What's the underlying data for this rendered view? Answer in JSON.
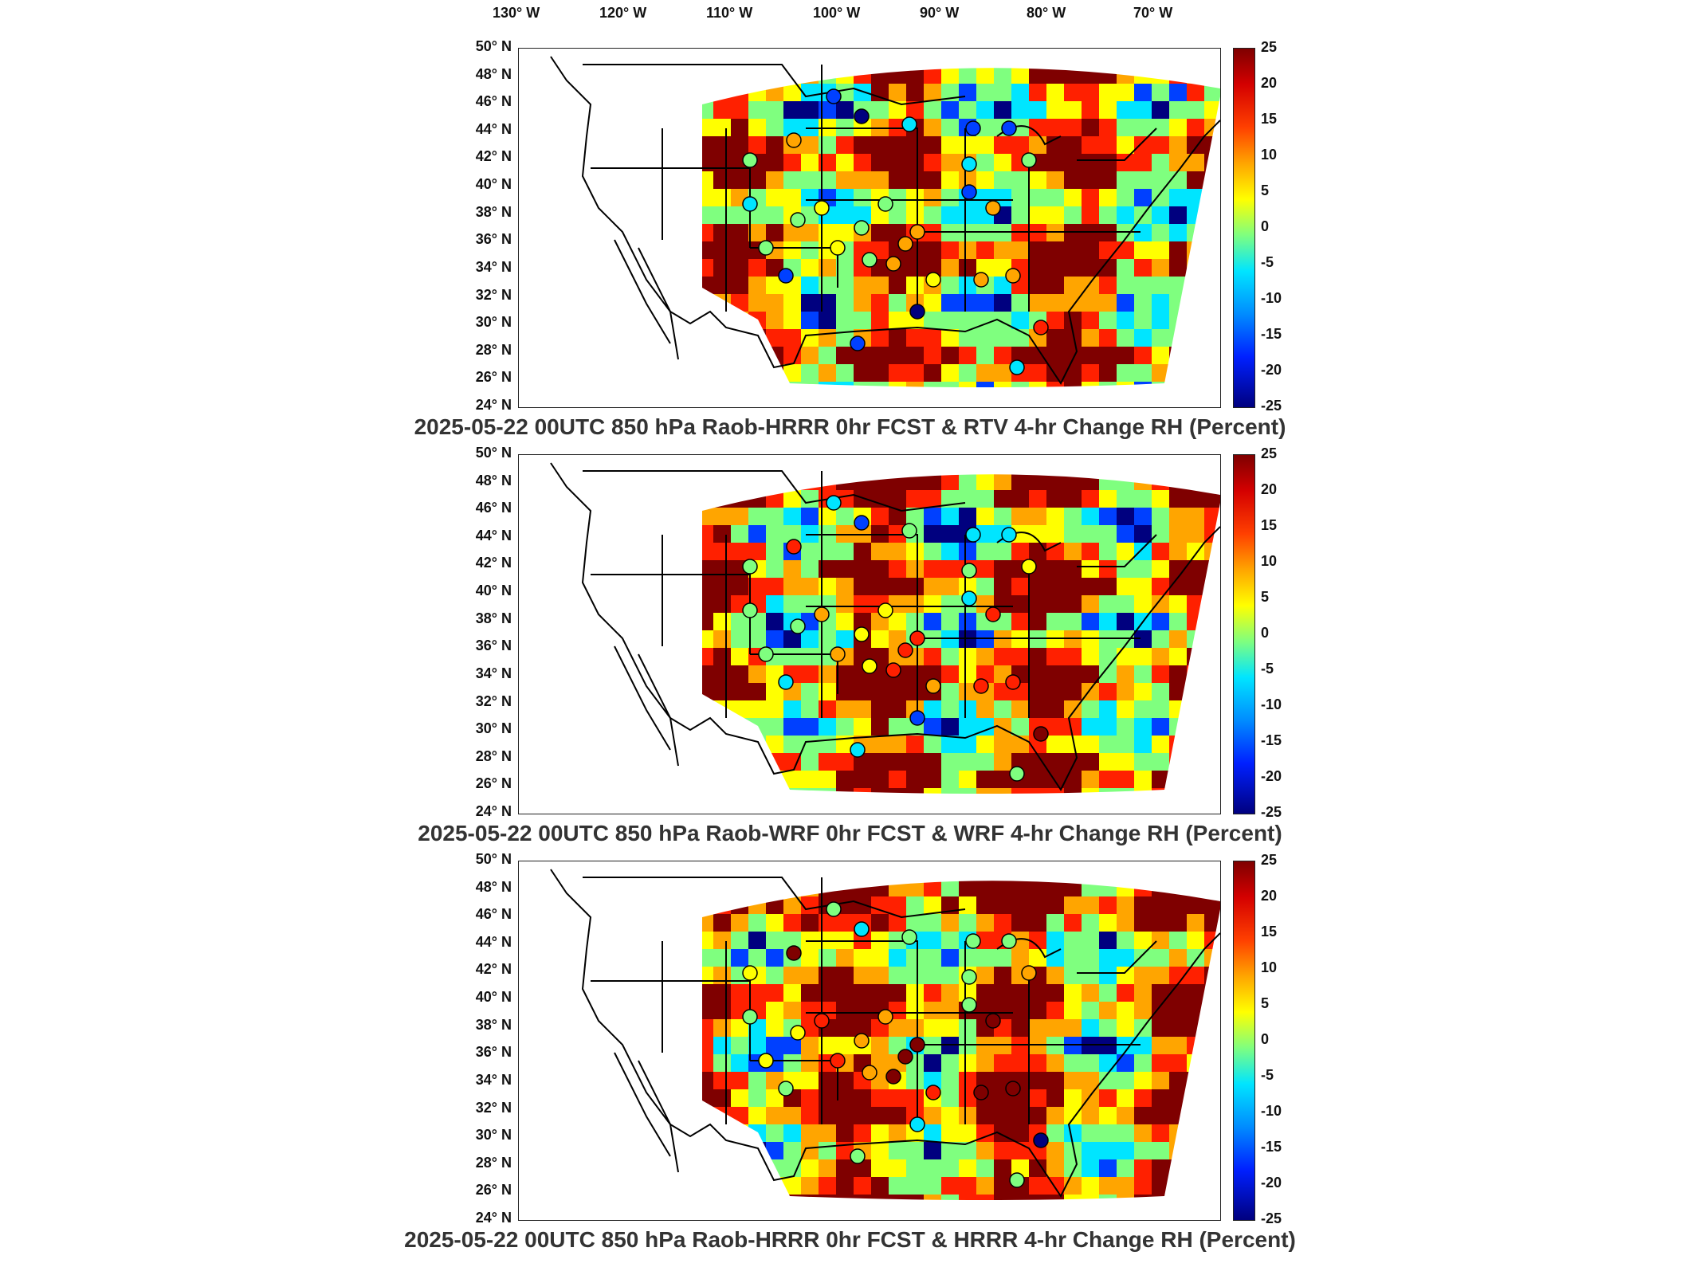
{
  "lon_labels": [
    "130° W",
    "120° W",
    "110° W",
    "100° W",
    "90° W",
    "80° W",
    "70° W"
  ],
  "lat_labels": [
    "50° N",
    "48° N",
    "46° N",
    "44° N",
    "42° N",
    "40° N",
    "38° N",
    "36° N",
    "34° N",
    "32° N",
    "30° N",
    "28° N",
    "26° N",
    "24° N"
  ],
  "colorbar_ticks": [
    "25",
    "20",
    "15",
    "10",
    "5",
    "0",
    "-5",
    "-10",
    "-15",
    "-20",
    "-25"
  ],
  "panels": [
    {
      "title": "2025-05-22 00UTC 850 hPa Raob-HRRR 0hr FCST & RTV 4-hr Change RH (Percent)"
    },
    {
      "title": "2025-05-22 00UTC 850 hPa Raob-WRF 0hr FCST & WRF 4-hr Change RH (Percent)"
    },
    {
      "title": "2025-05-22 00UTC 850 hPa Raob-HRRR 0hr FCST & HRRR 4-hr Change RH (Percent)"
    }
  ],
  "colors": {
    "dark_red": "#7f0000",
    "red": "#ff2000",
    "orange": "#ffa500",
    "yellow": "#ffff00",
    "green": "#7fff7f",
    "cyan": "#00e5ff",
    "blue": "#0040ff",
    "dark_blue": "#00007f"
  }
}
